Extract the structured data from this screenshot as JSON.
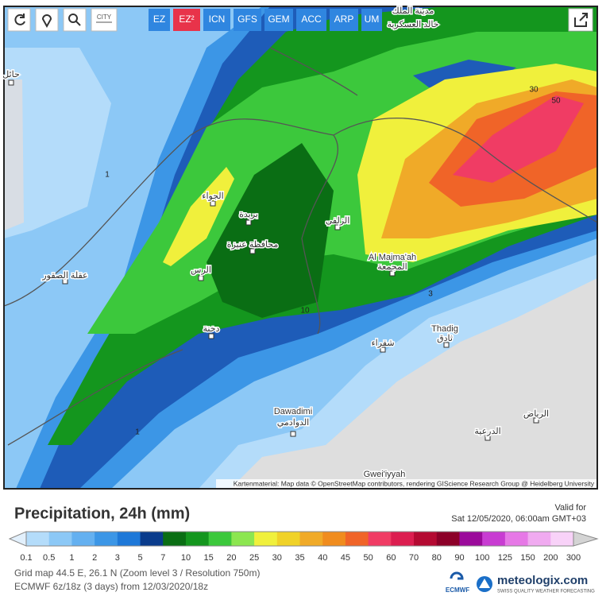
{
  "toolbar": {
    "city_button": "CITY",
    "model_tabs": [
      "EZ",
      "EZ²",
      "ICN",
      "GFS",
      "GEM",
      "ACC",
      "ARP",
      "UM"
    ],
    "active_tab": "EZ²",
    "active_color": "#e8334a",
    "tab_color": "#2f86e0"
  },
  "map": {
    "places": [
      "حائل",
      "مدينة الملك",
      "خالد العسكرية",
      "الجواء",
      "بريدة",
      "محافظة عنيزة",
      "الرس",
      "عقلة الصقور",
      "دخنة",
      "الزلفي",
      "Al Majma'ah",
      "المجمعة",
      "Thadig",
      "ثادق",
      "شقراء",
      "Dawadimi",
      "الدوادمي",
      "الرياض",
      "الدرعية",
      "Gwei'iyyah"
    ],
    "contour_labels": [
      "1",
      "1",
      "10",
      "3",
      "30",
      "50"
    ],
    "attribution": "Kartenmaterial: Map data © OpenStreetMap contributors, rendering GIScience Research Group @ Heidelberg University"
  },
  "legend": {
    "title": "Precipitation, 24h (mm)",
    "valid_for": "Valid for",
    "valid_time": "Sat 12/05/2020, 06:00am GMT+03",
    "labels": [
      "0.1",
      "0.5",
      "1",
      "2",
      "3",
      "5",
      "7",
      "10",
      "15",
      "20",
      "25",
      "30",
      "35",
      "40",
      "45",
      "50",
      "60",
      "70",
      "80",
      "90",
      "100",
      "125",
      "150",
      "200",
      "300"
    ],
    "colors": [
      "#b4dcfa",
      "#8cc8f6",
      "#64b0f0",
      "#3c96e6",
      "#1e78d8",
      "#0a3c8c",
      "#0a6e14",
      "#14961e",
      "#3cc83c",
      "#8ce650",
      "#f0f03c",
      "#f0d228",
      "#f0aa28",
      "#f08c1e",
      "#f06428",
      "#f03c64",
      "#dc1e50",
      "#b40a32",
      "#8c0028",
      "#9b0a9b",
      "#c83cd2",
      "#e678e6",
      "#f0aaf0",
      "#f8d2f8"
    ],
    "under_color": "#e2f0fc",
    "over_color": "#d4d4d4"
  },
  "footer": {
    "grid_info": "Grid map 44.5 E, 26.1 N (Zoom level 3 / Resolution 750m)",
    "model_run": "ECMWF 6z/18z (3 days) from 12/03/2020/18z",
    "brand": "meteologix.com",
    "tagline": "SWISS QUALITY WEATHER FORECASTING",
    "ecmwf": "ECMWF"
  }
}
